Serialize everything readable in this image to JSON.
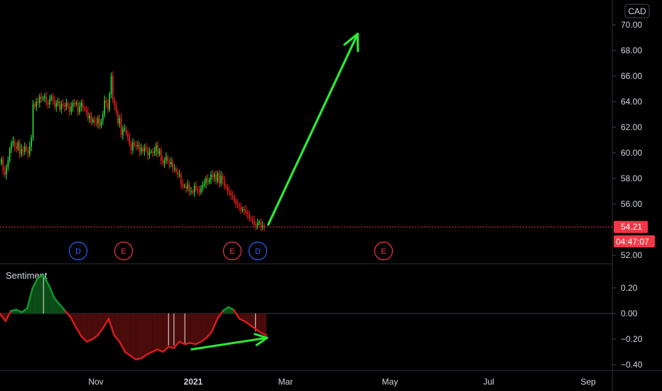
{
  "chart_data": [
    {
      "type": "candlestick",
      "currency": "CAD",
      "price_axis": {
        "ylim": [
          51.5,
          71.3
        ],
        "ticks": [
          "70.00",
          "68.00",
          "66.00",
          "64.00",
          "62.00",
          "60.00",
          "58.00",
          "56.00",
          "52.00"
        ]
      },
      "x_axis": {
        "ticks": [
          "Nov",
          "2021",
          "Mar",
          "May",
          "Jul",
          "Sep"
        ]
      },
      "last_price": "54.21",
      "countdown": "04:47:07",
      "colors": {
        "up": "#22ab94",
        "down": "#f23645",
        "up_bright": "#26f03a",
        "down_bright": "#ff2020",
        "arrow": "#2bea34",
        "price_line": "#f23645"
      },
      "series": [
        {
          "name": "",
          "close": [
            59.5,
            58.6,
            58.3,
            58.9,
            59.4,
            60.3,
            60.7,
            60.9,
            60.5,
            60.3,
            60.8,
            59.9,
            60.3,
            60.1,
            60.5,
            60.2,
            59.9,
            60.5,
            61.2,
            63.8,
            63.6,
            64.0,
            63.9,
            64.4,
            64.2,
            64.3,
            64.4,
            63.9,
            63.8,
            64.2,
            64.4,
            64.1,
            63.6,
            63.9,
            64.0,
            63.4,
            63.8,
            63.7,
            63.6,
            63.9,
            63.6,
            63.2,
            63.6,
            63.9,
            63.8,
            63.9,
            63.2,
            63.6,
            63.9,
            63.5,
            63.4,
            63.2,
            62.7,
            62.9,
            62.4,
            62.6,
            62.4,
            62.3,
            62.7,
            62.1,
            62.5,
            63.0,
            64.1,
            63.9,
            63.4,
            64.6,
            66.0,
            64.1,
            63.7,
            63.2,
            62.3,
            62.7,
            61.4,
            61.9,
            61.9,
            61.5,
            61.2,
            60.7,
            60.2,
            60.8,
            60.6,
            60.5,
            60.6,
            60.1,
            60.4,
            60.1,
            60.4,
            60.3,
            59.8,
            60.1,
            60.1,
            60.0,
            60.1,
            60.6,
            59.9,
            60.2,
            59.4,
            59.2,
            59.4,
            59.7,
            59.3,
            59.1,
            59.3,
            58.8,
            58.8,
            58.5,
            58.3,
            58.3,
            57.6,
            57.4,
            57.4,
            57.2,
            57.5,
            57.0,
            57.0,
            56.9,
            57.4,
            57.2,
            57.1,
            56.9,
            57.3,
            57.5,
            57.6,
            58.0,
            57.7,
            57.9,
            58.3,
            58.1,
            58.3,
            57.8,
            58.4,
            57.6,
            58.2,
            57.9,
            57.4,
            57.3,
            57.0,
            56.9,
            56.7,
            56.6,
            56.2,
            56.0,
            55.9,
            55.8,
            55.5,
            55.6,
            55.5,
            55.3,
            55.2,
            54.9,
            54.8,
            54.7,
            54.4,
            54.3,
            54.5,
            54.6,
            54.2,
            54.3,
            54.21
          ]
        }
      ],
      "annotations": [
        {
          "type": "arrow",
          "from": [
            "2021-02-20",
            54.4
          ],
          "to": [
            "2021-04-15",
            69.3
          ]
        }
      ]
    },
    {
      "type": "area",
      "title": "Sentiment",
      "ylim": [
        -0.42,
        0.31
      ],
      "y_ticks": [
        "0.20",
        "0.00",
        "−0.20",
        "−0.40"
      ],
      "line_color_positive": "#0e9b2c",
      "line_color_negative": "#dd1c1c",
      "fill_positive": "#0b4d18",
      "fill_negative": "#4a0b0b",
      "series": [
        {
          "name": "",
          "values": [
            0.0,
            -0.06,
            0.02,
            0.03,
            0.01,
            0.04,
            0.2,
            0.28,
            0.3,
            0.22,
            0.12,
            0.07,
            0.02,
            -0.03,
            -0.11,
            -0.18,
            -0.22,
            -0.2,
            -0.17,
            -0.11,
            -0.04,
            -0.17,
            -0.22,
            -0.3,
            -0.33,
            -0.36,
            -0.35,
            -0.32,
            -0.3,
            -0.28,
            -0.3,
            -0.26,
            -0.27,
            -0.22,
            -0.24,
            -0.23,
            -0.24,
            -0.22,
            -0.19,
            -0.14,
            -0.04,
            0.02,
            0.05,
            0.03,
            -0.04,
            -0.06,
            -0.09,
            -0.12,
            -0.15,
            -0.17
          ]
        }
      ],
      "annotations": [
        {
          "type": "arrow",
          "from": [
            "2021-01-01",
            -0.28
          ],
          "to": [
            "2021-02-18",
            -0.19
          ]
        }
      ]
    }
  ],
  "events": [
    {
      "label": "D",
      "kind": "dividend",
      "color": "#2962ff"
    },
    {
      "label": "E",
      "kind": "earnings",
      "color": "#f23645"
    },
    {
      "label": "E",
      "kind": "earnings",
      "color": "#f23645"
    },
    {
      "label": "D",
      "kind": "dividend",
      "color": "#2962ff"
    },
    {
      "label": "E",
      "kind": "earnings",
      "color": "#f23645"
    }
  ]
}
